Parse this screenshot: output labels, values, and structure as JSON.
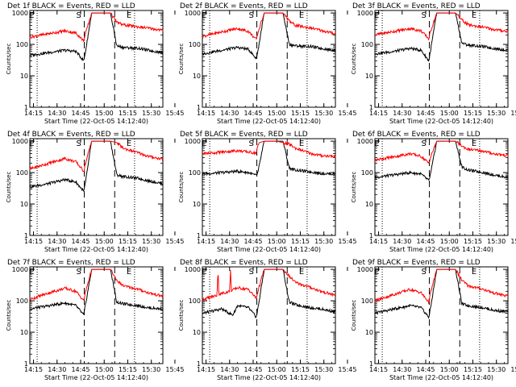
{
  "figure": {
    "xlabel": "Start Time (22-Oct-05 14:12:40)",
    "ylabel": "Counts/sec",
    "x_tick_labels": [
      "14:15",
      "14:30",
      "14:45",
      "15:00",
      "15:15",
      "15:30",
      "15:45"
    ],
    "y_tick_labels": [
      "1",
      "10",
      "100",
      "1000"
    ],
    "markers": [
      "E",
      "S",
      "E"
    ],
    "colors": {
      "events": "#000000",
      "lld": "#ff0000"
    }
  },
  "chart_data": [
    {
      "type": "line",
      "title": "Det 1f BLACK = Events, RED = LLD",
      "xlim_min": [
        12.67,
        97.33
      ],
      "ylim": [
        1,
        1200
      ],
      "y_scale": "log",
      "vlines_min": {
        "dotted": [
          17.33,
          79.33
        ],
        "dashed": [
          47.33,
          66.67
        ]
      },
      "series": [
        {
          "name": "Events",
          "x_min": [
            12.67,
            25,
            35,
            42,
            47,
            48,
            52,
            58,
            64,
            68,
            72,
            82,
            88,
            97
          ],
          "y": [
            45,
            55,
            65,
            60,
            30,
            55,
            1000,
            1000,
            1000,
            90,
            80,
            75,
            65,
            55
          ]
        },
        {
          "name": "LLD",
          "x_min": [
            12.67,
            25,
            35,
            42,
            47,
            48,
            52,
            58,
            64,
            68,
            72,
            82,
            88,
            97
          ],
          "y": [
            170,
            220,
            270,
            230,
            130,
            210,
            1000,
            1000,
            1000,
            500,
            420,
            360,
            330,
            280
          ]
        }
      ]
    },
    {
      "type": "line",
      "title": "Det 2f BLACK = Events, RED = LLD",
      "xlim_min": [
        12.67,
        97.33
      ],
      "ylim": [
        1,
        1200
      ],
      "y_scale": "log",
      "vlines_min": {
        "dotted": [
          17.33,
          79.33
        ],
        "dashed": [
          47.33,
          66.67
        ]
      },
      "series": [
        {
          "name": "Events",
          "x_min": [
            12.67,
            25,
            35,
            42,
            47,
            48,
            52,
            58,
            64,
            68,
            72,
            82,
            88,
            97
          ],
          "y": [
            50,
            65,
            80,
            70,
            35,
            60,
            1000,
            1000,
            1000,
            100,
            90,
            85,
            75,
            65
          ]
        },
        {
          "name": "LLD",
          "x_min": [
            12.67,
            25,
            35,
            42,
            47,
            48,
            52,
            58,
            64,
            68,
            72,
            82,
            88,
            97
          ],
          "y": [
            180,
            250,
            320,
            260,
            140,
            230,
            1000,
            1000,
            1000,
            550,
            400,
            330,
            280,
            220
          ]
        }
      ]
    },
    {
      "type": "line",
      "title": "Det 3f BLACK = Events, RED = LLD",
      "xlim_min": [
        12.67,
        97.33
      ],
      "ylim": [
        1,
        1200
      ],
      "y_scale": "log",
      "vlines_min": {
        "dotted": [
          17.33,
          79.33
        ],
        "dashed": [
          47.33,
          66.67
        ]
      },
      "series": [
        {
          "name": "Events",
          "x_min": [
            12.67,
            25,
            35,
            42,
            47,
            48,
            52,
            58,
            64,
            68,
            72,
            82,
            88,
            97
          ],
          "y": [
            50,
            60,
            75,
            65,
            30,
            60,
            1000,
            1000,
            1000,
            110,
            95,
            85,
            75,
            65
          ]
        },
        {
          "name": "LLD",
          "x_min": [
            12.67,
            25,
            35,
            42,
            47,
            48,
            52,
            58,
            64,
            68,
            72,
            82,
            88,
            97
          ],
          "y": [
            200,
            260,
            320,
            270,
            150,
            250,
            1000,
            1000,
            1000,
            600,
            420,
            350,
            300,
            260
          ]
        }
      ]
    },
    {
      "type": "line",
      "title": "Det 4f BLACK = Events, RED = LLD",
      "xlim_min": [
        12.67,
        97.33
      ],
      "ylim": [
        1,
        1200
      ],
      "y_scale": "log",
      "vlines_min": {
        "dotted": [
          17.33,
          79.33
        ],
        "dashed": [
          47.33,
          66.67
        ]
      },
      "series": [
        {
          "name": "Events",
          "x_min": [
            12.67,
            25,
            35,
            42,
            47,
            48,
            52,
            58,
            64,
            68,
            72,
            82,
            88,
            97
          ],
          "y": [
            35,
            45,
            60,
            50,
            25,
            45,
            1000,
            1000,
            1000,
            85,
            75,
            65,
            55,
            45
          ]
        },
        {
          "name": "LLD",
          "x_min": [
            12.67,
            25,
            35,
            42,
            47,
            48,
            52,
            58,
            64,
            68,
            72,
            82,
            88,
            97
          ],
          "y": [
            130,
            200,
            280,
            220,
            110,
            190,
            1000,
            1000,
            1000,
            900,
            600,
            420,
            330,
            270
          ]
        }
      ]
    },
    {
      "type": "line",
      "title": "Det 5f BLACK = Events, RED = LLD",
      "xlim_min": [
        12.67,
        97.33
      ],
      "ylim": [
        1,
        1200
      ],
      "y_scale": "log",
      "vlines_min": {
        "dotted": [
          17.33,
          79.33
        ],
        "dashed": [
          47.33,
          66.67
        ]
      },
      "series": [
        {
          "name": "Events",
          "x_min": [
            12.67,
            25,
            35,
            42,
            47,
            48,
            52,
            58,
            64,
            68,
            72,
            82,
            88,
            97
          ],
          "y": [
            90,
            100,
            110,
            100,
            80,
            100,
            1000,
            1000,
            1000,
            140,
            120,
            105,
            95,
            90
          ]
        },
        {
          "name": "LLD",
          "x_min": [
            12.67,
            25,
            35,
            42,
            47,
            48,
            49,
            52,
            55,
            60,
            64,
            68,
            72,
            82,
            88,
            97
          ],
          "y": [
            400,
            450,
            500,
            450,
            420,
            700,
            900,
            1000,
            1000,
            1000,
            900,
            800,
            600,
            400,
            350,
            330
          ]
        }
      ]
    },
    {
      "type": "line",
      "title": "Det 6f BLACK = Events, RED = LLD",
      "xlim_min": [
        12.67,
        97.33
      ],
      "ylim": [
        1,
        1200
      ],
      "y_scale": "log",
      "vlines_min": {
        "dotted": [
          17.33,
          79.33
        ],
        "dashed": [
          47.33,
          66.67
        ]
      },
      "series": [
        {
          "name": "Events",
          "x_min": [
            12.67,
            25,
            35,
            42,
            47,
            48,
            52,
            58,
            64,
            68,
            72,
            82,
            88,
            97
          ],
          "y": [
            70,
            85,
            100,
            90,
            55,
            85,
            1000,
            1000,
            1000,
            150,
            120,
            100,
            85,
            70
          ]
        },
        {
          "name": "LLD",
          "x_min": [
            12.67,
            25,
            35,
            42,
            47,
            48,
            52,
            58,
            64,
            68,
            72,
            82,
            88,
            97
          ],
          "y": [
            250,
            320,
            400,
            330,
            200,
            300,
            1000,
            1000,
            1000,
            700,
            550,
            480,
            400,
            350
          ]
        }
      ]
    },
    {
      "type": "line",
      "title": "Det 7f BLACK = Events, RED = LLD",
      "xlim_min": [
        12.67,
        97.33
      ],
      "ylim": [
        1,
        1200
      ],
      "y_scale": "log",
      "vlines_min": {
        "dotted": [
          17.33,
          79.33
        ],
        "dashed": [
          47.33,
          66.67
        ]
      },
      "series": [
        {
          "name": "Events",
          "x_min": [
            12.67,
            25,
            35,
            42,
            47,
            48,
            52,
            58,
            64,
            68,
            72,
            82,
            88,
            97
          ],
          "y": [
            55,
            70,
            85,
            70,
            35,
            70,
            1000,
            1000,
            1000,
            90,
            80,
            70,
            60,
            55
          ]
        },
        {
          "name": "LLD",
          "x_min": [
            12.67,
            25,
            35,
            42,
            47,
            48,
            52,
            58,
            64,
            68,
            72,
            82,
            88,
            97
          ],
          "y": [
            110,
            180,
            250,
            200,
            100,
            180,
            1000,
            1000,
            1000,
            450,
            300,
            230,
            180,
            140
          ]
        }
      ]
    },
    {
      "type": "line",
      "title": "Det 8f BLACK = Events, RED = LLD",
      "xlim_min": [
        12.67,
        97.33
      ],
      "ylim": [
        1,
        1200
      ],
      "y_scale": "log",
      "vlines_min": {
        "dotted": [
          17.33,
          79.33
        ],
        "dashed": [
          47.33,
          66.67
        ]
      },
      "series": [
        {
          "name": "Events",
          "x_min": [
            12.67,
            25,
            32,
            35,
            42,
            47,
            48,
            52,
            58,
            64,
            68,
            72,
            82,
            88,
            97
          ],
          "y": [
            40,
            55,
            35,
            70,
            60,
            30,
            55,
            1000,
            1000,
            1000,
            90,
            75,
            60,
            55,
            45
          ]
        },
        {
          "name": "LLD",
          "x_min": [
            12.67,
            22,
            22.6,
            23.2,
            30,
            30.6,
            31.2,
            35,
            42,
            47,
            48,
            52,
            58,
            64,
            68,
            72,
            82,
            88,
            97
          ],
          "y": [
            110,
            150,
            1000,
            160,
            200,
            1000,
            210,
            260,
            230,
            120,
            200,
            1000,
            1000,
            1000,
            600,
            380,
            260,
            200,
            150
          ]
        }
      ]
    },
    {
      "type": "line",
      "title": "Det 9f BLACK = Events, RED = LLD",
      "xlim_min": [
        12.67,
        97.33
      ],
      "ylim": [
        1,
        1200
      ],
      "y_scale": "log",
      "vlines_min": {
        "dotted": [
          17.33,
          79.33
        ],
        "dashed": [
          47.33,
          66.67
        ]
      },
      "series": [
        {
          "name": "Events",
          "x_min": [
            12.67,
            25,
            35,
            42,
            47,
            48,
            52,
            58,
            64,
            68,
            72,
            82,
            88,
            97
          ],
          "y": [
            40,
            55,
            70,
            60,
            30,
            55,
            1000,
            1000,
            1000,
            80,
            70,
            60,
            50,
            45
          ]
        },
        {
          "name": "LLD",
          "x_min": [
            12.67,
            25,
            35,
            42,
            47,
            48,
            52,
            58,
            64,
            68,
            72,
            82,
            88,
            97
          ],
          "y": [
            100,
            160,
            230,
            180,
            90,
            170,
            1000,
            1000,
            1000,
            450,
            300,
            230,
            180,
            140
          ]
        }
      ]
    }
  ]
}
